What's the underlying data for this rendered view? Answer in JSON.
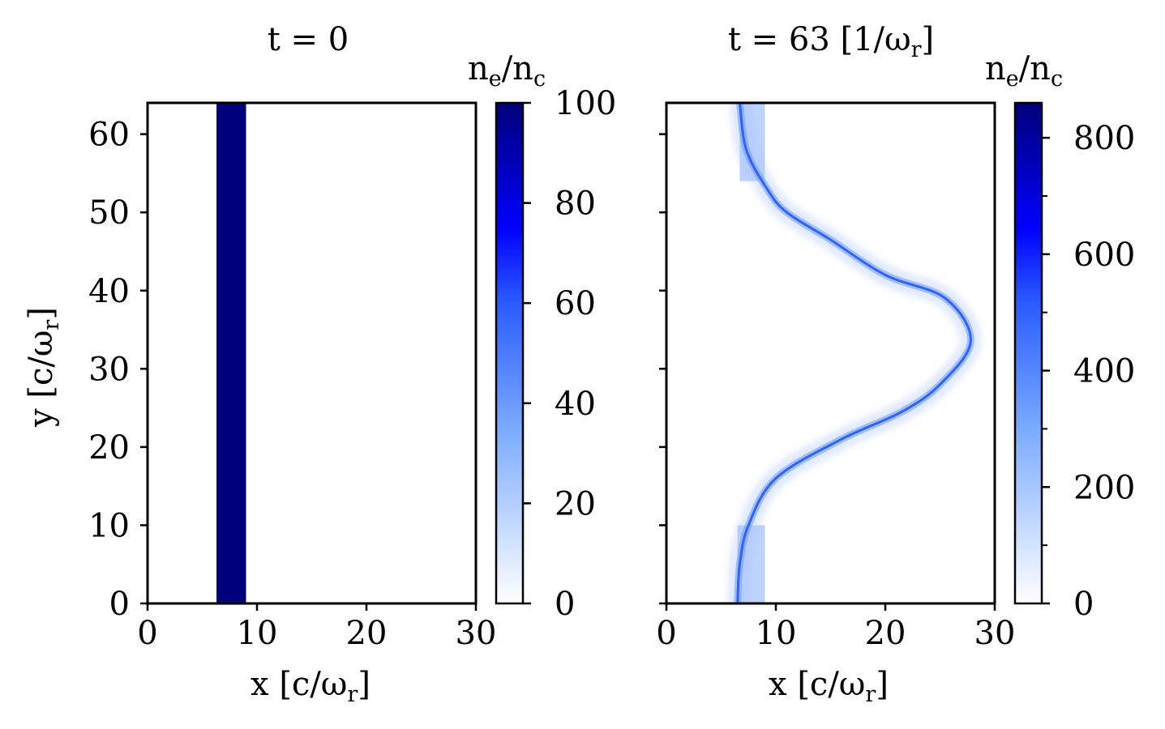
{
  "chart_data": [
    {
      "type": "heatmap",
      "title": "t = 0",
      "xlabel": "x [c/ω",
      "xlabel_sub": "r",
      "xlabel_close": "]",
      "ylabel": "y [c/ω",
      "ylabel_sub": "r",
      "ylabel_close": "]",
      "xlim": [
        0,
        30
      ],
      "ylim": [
        0,
        64
      ],
      "xticks": [
        0,
        10,
        20,
        30
      ],
      "yticks": [
        0,
        10,
        20,
        30,
        40,
        50,
        60
      ],
      "colorbar": {
        "label": "n",
        "label_sub1": "e",
        "label_mid": "/n",
        "label_sub2": "c",
        "range": [
          0,
          100
        ],
        "ticks": [
          0,
          20,
          40,
          60,
          80,
          100
        ]
      },
      "features": [
        {
          "kind": "slab",
          "x_range": [
            6.3,
            9.0
          ],
          "y_range": [
            0,
            64
          ],
          "density": 100
        }
      ]
    },
    {
      "type": "heatmap",
      "title": "t = 63 [1/ω",
      "title_sub": "r",
      "title_close": "]",
      "xlabel": "x [c/ω",
      "xlabel_sub": "r",
      "xlabel_close": "]",
      "xlim": [
        0,
        30
      ],
      "ylim": [
        0,
        64
      ],
      "xticks": [
        0,
        10,
        20,
        30
      ],
      "yticks": [
        0,
        10,
        20,
        30,
        40,
        50,
        60
      ],
      "colorbar": {
        "label": "n",
        "label_sub1": "e",
        "label_mid": "/n",
        "label_sub2": "c",
        "range": [
          0,
          860
        ],
        "ticks": [
          0,
          200,
          400,
          600,
          800
        ],
        "minor_ticks": [
          100,
          300,
          500,
          700
        ]
      },
      "features": [
        {
          "kind": "background_band",
          "x_range": [
            6.5,
            9.0
          ],
          "y_range": [
            0,
            10
          ],
          "density": 150
        },
        {
          "kind": "background_band",
          "x_range": [
            6.7,
            9.0
          ],
          "y_range": [
            54,
            64
          ],
          "density": 150
        },
        {
          "kind": "shell_curve",
          "density": 650,
          "points": [
            [
              6.5,
              0
            ],
            [
              6.7,
              5
            ],
            [
              7.5,
              10
            ],
            [
              10,
              16
            ],
            [
              16,
              21
            ],
            [
              21.5,
              24.5
            ],
            [
              25,
              28
            ],
            [
              27.8,
              33.5
            ],
            [
              25.5,
              39
            ],
            [
              20,
              42
            ],
            [
              15,
              46.5
            ],
            [
              11,
              50
            ],
            [
              9.2,
              53
            ],
            [
              7.3,
              58
            ],
            [
              6.7,
              64
            ]
          ]
        }
      ]
    }
  ],
  "colors": {
    "colormap": [
      "#ffffff",
      "#1e64ff",
      "#0000ff",
      "#00007a"
    ],
    "axes": "#000000"
  }
}
